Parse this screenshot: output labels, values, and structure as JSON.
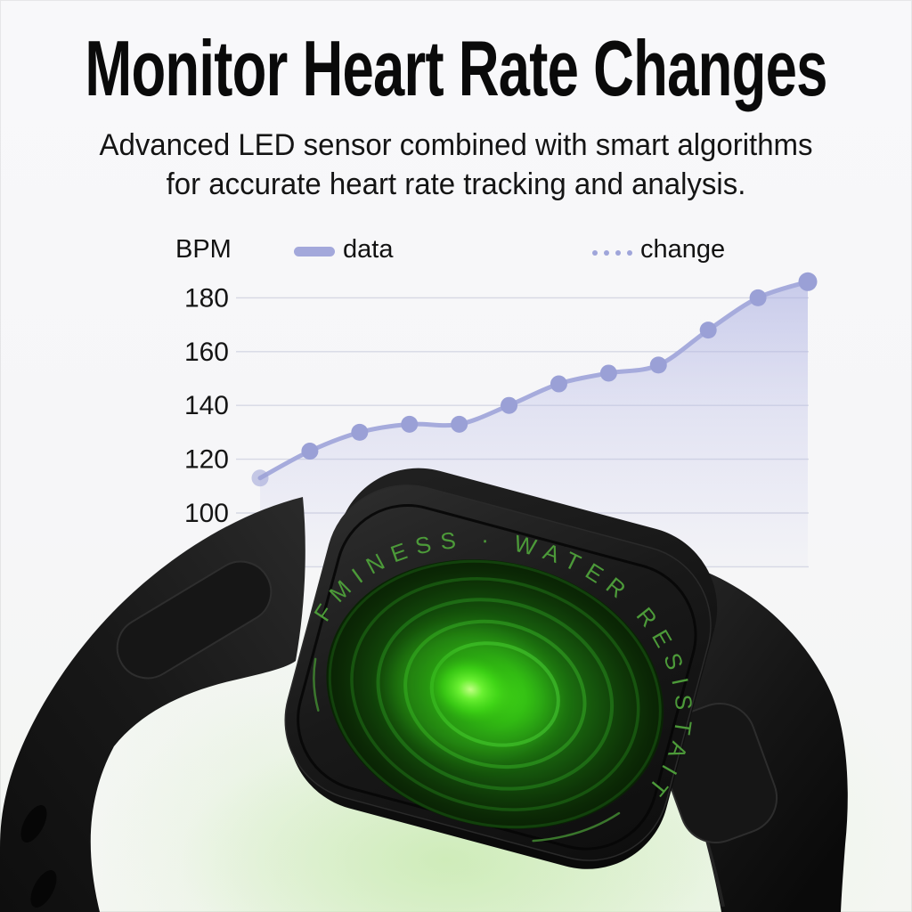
{
  "page": {
    "background": "#f7f7f9",
    "accent_purple": "#a6abdc",
    "led_green": "#3fd315"
  },
  "header": {
    "title": "Monitor Heart Rate Changes",
    "subtitle_line1": "Advanced LED sensor combined with smart algorithms",
    "subtitle_line2": "for accurate heart rate tracking and analysis."
  },
  "chart": {
    "unit_label": "BPM",
    "legend": [
      {
        "label": "data",
        "style": "solid-line"
      },
      {
        "label": "change",
        "style": "dotted-line"
      }
    ],
    "line_color": "#a6abdc",
    "dot_color": "#9aa0d6",
    "grid_color": "#d6d8e4"
  },
  "chart_data": {
    "type": "area",
    "title": "",
    "xlabel": "",
    "ylabel": "BPM",
    "x": [
      1,
      2,
      3,
      4,
      5,
      6,
      7,
      8,
      9,
      10,
      11,
      12
    ],
    "series": [
      {
        "name": "data",
        "values": [
          113,
          123,
          130,
          133,
          133,
          140,
          148,
          152,
          155,
          168,
          180,
          186
        ]
      }
    ],
    "yticks": [
      180,
      160,
      140,
      120,
      100
    ],
    "grid_values": [
      180,
      160,
      140,
      120,
      100,
      80
    ],
    "ylim": [
      80,
      195
    ],
    "grid": true,
    "legend_position": "top"
  },
  "watch": {
    "engraving": "FMINESS · WATER RESISTAIT"
  }
}
